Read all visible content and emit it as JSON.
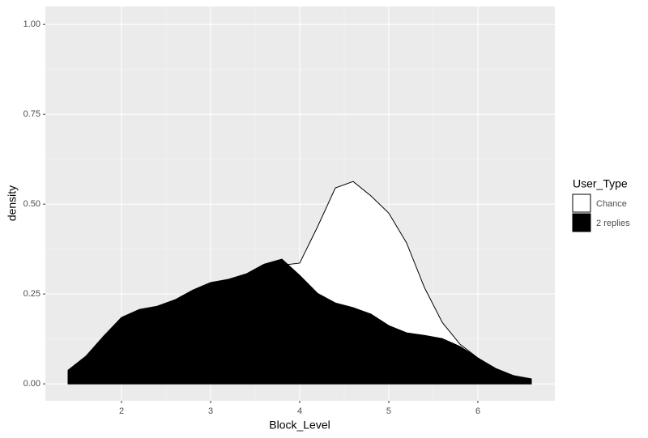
{
  "chart_data": {
    "type": "area",
    "x_label": "Block_Level",
    "y_label": "density",
    "x": [
      1.4,
      1.6,
      1.8,
      2.0,
      2.2,
      2.4,
      2.6,
      2.8,
      3.0,
      3.2,
      3.4,
      3.6,
      3.8,
      4.0,
      4.2,
      4.4,
      4.6,
      4.8,
      5.0,
      5.2,
      5.4,
      5.6,
      5.8,
      6.0,
      6.2,
      6.4,
      6.6
    ],
    "series": [
      {
        "name": "Chance",
        "color": "#ffffff",
        "values": [
          0.03,
          0.05,
          0.08,
          0.11,
          0.13,
          0.15,
          0.17,
          0.19,
          0.21,
          0.23,
          0.26,
          0.3,
          0.33,
          0.336,
          0.437,
          0.545,
          0.563,
          0.523,
          0.475,
          0.392,
          0.268,
          0.171,
          0.11,
          0.072,
          0.04,
          0.02,
          0.012
        ]
      },
      {
        "name": "2 replies",
        "color": "#000000",
        "values": [
          0.038,
          0.077,
          0.133,
          0.185,
          0.207,
          0.216,
          0.234,
          0.261,
          0.282,
          0.291,
          0.306,
          0.333,
          0.347,
          0.302,
          0.252,
          0.225,
          0.212,
          0.194,
          0.162,
          0.142,
          0.135,
          0.126,
          0.104,
          0.072,
          0.043,
          0.023,
          0.014
        ]
      }
    ],
    "legend_title": "User_Type",
    "xlim": [
      1.145,
      6.864
    ],
    "ylim": [
      -0.047,
      1.05
    ],
    "xticks": [
      2,
      3,
      4,
      5,
      6
    ],
    "yticks": [
      {
        "value": 0,
        "label": "0.00"
      },
      {
        "value": 0.25,
        "label": "0.25"
      },
      {
        "value": 0.5,
        "label": "0.50"
      },
      {
        "value": 0.75,
        "label": "0.75"
      },
      {
        "value": 1,
        "label": "1.00"
      }
    ],
    "grid": true
  }
}
